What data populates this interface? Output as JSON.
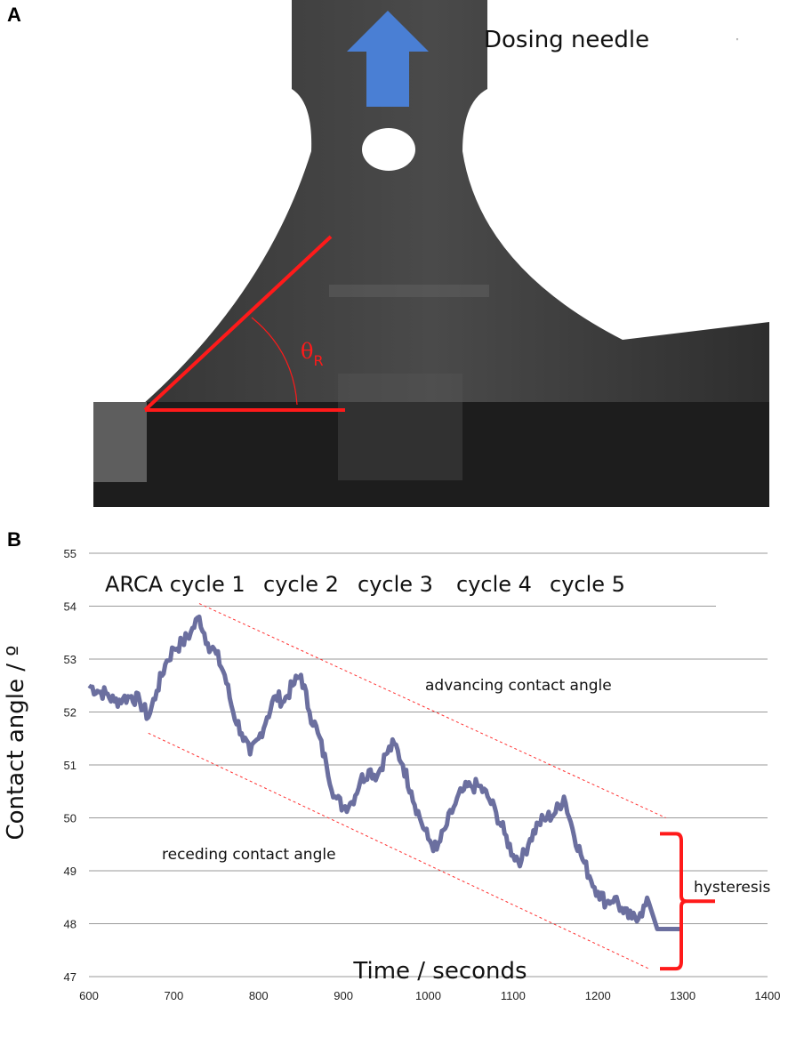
{
  "panels": {
    "a_label": "A",
    "b_label": "B"
  },
  "photo": {
    "caption": "Dosing needle",
    "angle_symbol": "θ",
    "angle_subscript": "R",
    "colors": {
      "angle_lines": "#ff1a1a",
      "arrow": "#4a7fd4",
      "background": "#2b2b2b"
    }
  },
  "chart_data": {
    "type": "line",
    "xlabel": "Time / seconds",
    "ylabel": "Contact angle / º",
    "xlim": [
      600,
      1400
    ],
    "ylim": [
      47,
      55
    ],
    "x_ticks": [
      600,
      700,
      800,
      900,
      1000,
      1100,
      1200,
      1300,
      1400
    ],
    "y_ticks": [
      47,
      48,
      49,
      50,
      51,
      52,
      53,
      54,
      55
    ],
    "grid": "horizontal",
    "cycle_labels": [
      "ARCA cycle 1",
      "cycle 2",
      "cycle 3",
      "cycle 4",
      "cycle 5"
    ],
    "annotations": {
      "advancing": "advancing contact angle",
      "receding": "receding contact angle",
      "hysteresis": "hysteresis"
    },
    "series": [
      {
        "color": "#6b6f9f",
        "points": [
          [
            600,
            52.5
          ],
          [
            610,
            52.4
          ],
          [
            620,
            52.35
          ],
          [
            630,
            52.2
          ],
          [
            640,
            52.25
          ],
          [
            650,
            52.3
          ],
          [
            660,
            52.2
          ],
          [
            670,
            51.9
          ],
          [
            680,
            52.4
          ],
          [
            690,
            52.9
          ],
          [
            700,
            53.2
          ],
          [
            710,
            53.3
          ],
          [
            720,
            53.5
          ],
          [
            730,
            53.8
          ],
          [
            740,
            53.3
          ],
          [
            750,
            53.1
          ],
          [
            760,
            52.7
          ],
          [
            770,
            52.0
          ],
          [
            780,
            51.6
          ],
          [
            790,
            51.2
          ],
          [
            800,
            51.5
          ],
          [
            810,
            51.9
          ],
          [
            820,
            52.3
          ],
          [
            830,
            52.2
          ],
          [
            840,
            52.5
          ],
          [
            850,
            52.7
          ],
          [
            860,
            52.0
          ],
          [
            870,
            51.6
          ],
          [
            880,
            51.0
          ],
          [
            890,
            50.4
          ],
          [
            900,
            50.2
          ],
          [
            910,
            50.3
          ],
          [
            920,
            50.7
          ],
          [
            930,
            50.9
          ],
          [
            940,
            50.8
          ],
          [
            950,
            51.2
          ],
          [
            960,
            51.4
          ],
          [
            970,
            51.0
          ],
          [
            980,
            50.5
          ],
          [
            990,
            50.0
          ],
          [
            1000,
            49.6
          ],
          [
            1010,
            49.4
          ],
          [
            1020,
            49.8
          ],
          [
            1030,
            50.2
          ],
          [
            1040,
            50.5
          ],
          [
            1050,
            50.6
          ],
          [
            1060,
            50.6
          ],
          [
            1070,
            50.4
          ],
          [
            1080,
            50.1
          ],
          [
            1090,
            49.7
          ],
          [
            1100,
            49.3
          ],
          [
            1110,
            49.2
          ],
          [
            1120,
            49.6
          ],
          [
            1130,
            49.9
          ],
          [
            1140,
            50.0
          ],
          [
            1150,
            50.1
          ],
          [
            1160,
            50.4
          ],
          [
            1170,
            49.8
          ],
          [
            1180,
            49.3
          ],
          [
            1190,
            48.9
          ],
          [
            1200,
            48.6
          ],
          [
            1210,
            48.4
          ],
          [
            1220,
            48.5
          ],
          [
            1230,
            48.2
          ],
          [
            1240,
            48.1
          ],
          [
            1250,
            48.2
          ],
          [
            1260,
            48.4
          ],
          [
            1270,
            47.9
          ],
          [
            1280,
            47.9
          ],
          [
            1290,
            47.9
          ],
          [
            1300,
            47.9
          ]
        ]
      }
    ],
    "advancing_trend": [
      [
        730,
        54.05
      ],
      [
        1280,
        50.0
      ]
    ],
    "receding_trend": [
      [
        670,
        51.6
      ],
      [
        1260,
        47.15
      ]
    ],
    "hysteresis_range": [
      47.15,
      49.7
    ]
  }
}
